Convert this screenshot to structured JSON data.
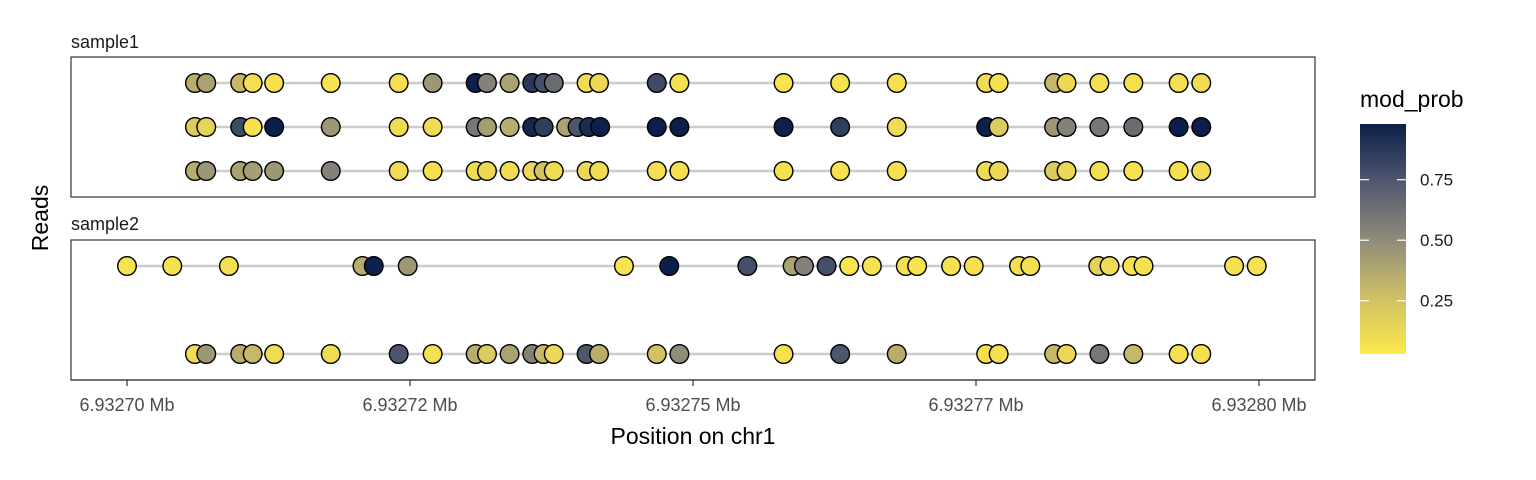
{
  "chart_data": {
    "type": "scatter",
    "title": "",
    "xlabel": "Position on chr1",
    "ylabel": "Reads",
    "xlim": [
      6932700,
      6932800
    ],
    "x_ticks": [
      {
        "value": 6932700,
        "label": "6.93270 Mb"
      },
      {
        "value": 6932725,
        "label": "6.93272 Mb"
      },
      {
        "value": 6932750,
        "label": "6.93275 Mb"
      },
      {
        "value": 6932775,
        "label": "6.93277 Mb"
      },
      {
        "value": 6932800,
        "label": "6.93280 Mb"
      }
    ],
    "legend": {
      "title": "mod_prob",
      "placement": "right",
      "range": [
        0.03,
        0.98
      ],
      "ticks": [
        {
          "value": 0.25,
          "label": "0.25"
        },
        {
          "value": 0.5,
          "label": "0.50"
        },
        {
          "value": 0.75,
          "label": "0.75"
        }
      ],
      "colors": [
        "#fde84c",
        "#cfbf66",
        "#8f8b7a",
        "#50586f",
        "#0b1f4a"
      ]
    },
    "grid": false,
    "facets": [
      {
        "name": "sample1",
        "reads": [
          {
            "points": [
              [
                6932706,
                0.35
              ],
              [
                6932707,
                0.4
              ],
              [
                6932710,
                0.3
              ],
              [
                6932711.1,
                0.08
              ],
              [
                6932713,
                0.07
              ],
              [
                6932718,
                0.06
              ],
              [
                6932724,
                0.08
              ],
              [
                6932727,
                0.45
              ],
              [
                6932730.8,
                0.97
              ],
              [
                6932731.8,
                0.55
              ],
              [
                6932733.8,
                0.4
              ],
              [
                6932735.8,
                0.88
              ],
              [
                6932736.8,
                0.78
              ],
              [
                6932737.7,
                0.65
              ],
              [
                6932740.6,
                0.1
              ],
              [
                6932741.7,
                0.12
              ],
              [
                6932746.8,
                0.8
              ],
              [
                6932748.8,
                0.07
              ],
              [
                6932758,
                0.06
              ],
              [
                6932763,
                0.06
              ],
              [
                6932768,
                0.07
              ],
              [
                6932775.9,
                0.1
              ],
              [
                6932777,
                0.08
              ],
              [
                6932781.9,
                0.3
              ],
              [
                6932783,
                0.12
              ],
              [
                6932785.9,
                0.07
              ],
              [
                6932788.9,
                0.07
              ],
              [
                6932792.9,
                0.08
              ],
              [
                6932794.9,
                0.1
              ]
            ]
          },
          {
            "points": [
              [
                6932706,
                0.2
              ],
              [
                6932707,
                0.15
              ],
              [
                6932710,
                0.8
              ],
              [
                6932711.1,
                0.07
              ],
              [
                6932713,
                0.98
              ],
              [
                6932718,
                0.45
              ],
              [
                6932724,
                0.1
              ],
              [
                6932727,
                0.1
              ],
              [
                6932730.8,
                0.6
              ],
              [
                6932731.8,
                0.42
              ],
              [
                6932733.8,
                0.35
              ],
              [
                6932735.8,
                0.95
              ],
              [
                6932736.8,
                0.85
              ],
              [
                6932738.8,
                0.4
              ],
              [
                6932739.8,
                0.75
              ],
              [
                6932740.8,
                0.92
              ],
              [
                6932741.8,
                0.97
              ],
              [
                6932746.8,
                0.98
              ],
              [
                6932748.8,
                0.98
              ],
              [
                6932758,
                0.97
              ],
              [
                6932763,
                0.85
              ],
              [
                6932768,
                0.1
              ],
              [
                6932775.9,
                0.97
              ],
              [
                6932777,
                0.2
              ],
              [
                6932781.9,
                0.45
              ],
              [
                6932783,
                0.55
              ],
              [
                6932785.9,
                0.6
              ],
              [
                6932788.9,
                0.65
              ],
              [
                6932792.9,
                0.98
              ],
              [
                6932794.9,
                0.98
              ]
            ]
          },
          {
            "points": [
              [
                6932706,
                0.35
              ],
              [
                6932707,
                0.45
              ],
              [
                6932710,
                0.4
              ],
              [
                6932711.1,
                0.42
              ],
              [
                6932713,
                0.45
              ],
              [
                6932718,
                0.55
              ],
              [
                6932724,
                0.1
              ],
              [
                6932727,
                0.08
              ],
              [
                6932730.8,
                0.1
              ],
              [
                6932731.8,
                0.12
              ],
              [
                6932733.8,
                0.1
              ],
              [
                6932735.8,
                0.12
              ],
              [
                6932736.8,
                0.25
              ],
              [
                6932737.7,
                0.1
              ],
              [
                6932740.6,
                0.12
              ],
              [
                6932741.7,
                0.1
              ],
              [
                6932746.8,
                0.08
              ],
              [
                6932748.8,
                0.08
              ],
              [
                6932758,
                0.07
              ],
              [
                6932763,
                0.06
              ],
              [
                6932768,
                0.07
              ],
              [
                6932775.9,
                0.1
              ],
              [
                6932777,
                0.12
              ],
              [
                6932781.9,
                0.2
              ],
              [
                6932783,
                0.12
              ],
              [
                6932785.9,
                0.08
              ],
              [
                6932788.9,
                0.06
              ],
              [
                6932792.9,
                0.07
              ],
              [
                6932794.9,
                0.1
              ]
            ]
          }
        ]
      },
      {
        "name": "sample2",
        "reads": [
          {
            "points": [
              [
                6932700,
                0.06
              ],
              [
                6932704,
                0.07
              ],
              [
                6932709,
                0.08
              ],
              [
                6932720.8,
                0.35
              ],
              [
                6932721.8,
                0.97
              ],
              [
                6932724.8,
                0.45
              ],
              [
                6932743.9,
                0.06
              ],
              [
                6932747.9,
                0.98
              ],
              [
                6932754.8,
                0.78
              ],
              [
                6932758.8,
                0.4
              ],
              [
                6932759.8,
                0.55
              ],
              [
                6932761.8,
                0.78
              ],
              [
                6932763.8,
                0.05
              ],
              [
                6932765.8,
                0.06
              ],
              [
                6932768.8,
                0.07
              ],
              [
                6932769.8,
                0.06
              ],
              [
                6932772.8,
                0.06
              ],
              [
                6932774.8,
                0.07
              ],
              [
                6932778.8,
                0.07
              ],
              [
                6932779.8,
                0.08
              ],
              [
                6932785.8,
                0.15
              ],
              [
                6932786.8,
                0.1
              ],
              [
                6932788.8,
                0.06
              ],
              [
                6932789.8,
                0.07
              ],
              [
                6932797.8,
                0.07
              ],
              [
                6932799.8,
                0.06
              ]
            ]
          },
          {
            "points": [
              [
                6932706,
                0.1
              ],
              [
                6932707,
                0.45
              ],
              [
                6932710,
                0.35
              ],
              [
                6932711.1,
                0.3
              ],
              [
                6932713,
                0.1
              ],
              [
                6932718,
                0.1
              ],
              [
                6932724,
                0.75
              ],
              [
                6932727,
                0.08
              ],
              [
                6932730.8,
                0.35
              ],
              [
                6932731.8,
                0.2
              ],
              [
                6932733.8,
                0.4
              ],
              [
                6932735.8,
                0.55
              ],
              [
                6932736.8,
                0.3
              ],
              [
                6932737.7,
                0.12
              ],
              [
                6932740.6,
                0.75
              ],
              [
                6932741.7,
                0.35
              ],
              [
                6932746.8,
                0.25
              ],
              [
                6932748.8,
                0.5
              ],
              [
                6932758,
                0.07
              ],
              [
                6932763,
                0.75
              ],
              [
                6932768,
                0.35
              ],
              [
                6932775.9,
                0.07
              ],
              [
                6932777,
                0.08
              ],
              [
                6932781.9,
                0.3
              ],
              [
                6932783,
                0.12
              ],
              [
                6932785.9,
                0.6
              ],
              [
                6932788.9,
                0.3
              ],
              [
                6932792.9,
                0.08
              ],
              [
                6932794.9,
                0.07
              ]
            ]
          }
        ]
      }
    ]
  }
}
